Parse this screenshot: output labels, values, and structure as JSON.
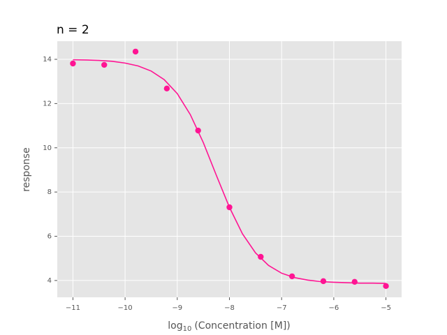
{
  "chart_data": {
    "type": "scatter",
    "title": "n = 2",
    "x_label": {
      "text": "log",
      "subscript": "10",
      "rest": "(Concentration [M])"
    },
    "y_label": "response",
    "xlim": [
      -11.3,
      -4.7
    ],
    "ylim": [
      3.24,
      14.82
    ],
    "xticks": [
      {
        "value": -11,
        "label": "−11"
      },
      {
        "value": -10,
        "label": "−10"
      },
      {
        "value": -9,
        "label": "−9"
      },
      {
        "value": -8,
        "label": "−8"
      },
      {
        "value": -7,
        "label": "−7"
      },
      {
        "value": -6,
        "label": "−6"
      },
      {
        "value": -5,
        "label": "−5"
      }
    ],
    "yticks": [
      4,
      6,
      8,
      10,
      12,
      14
    ],
    "grid": true,
    "series": [
      {
        "mode": "markers",
        "color": "#ff1493",
        "x": [
          -11,
          -10.4,
          -9.8,
          -9.2,
          -8.6,
          -8.0,
          -7.4,
          -6.8,
          -6.2,
          -5.6,
          -5.0
        ],
        "values": [
          13.81,
          13.75,
          14.35,
          12.68,
          10.78,
          7.31,
          5.07,
          4.19,
          3.97,
          3.94,
          3.75
        ]
      },
      {
        "mode": "line",
        "color": "#ff1493",
        "x": [
          -11,
          -10.75,
          -10.5,
          -10.25,
          -10,
          -9.75,
          -9.5,
          -9.25,
          -9,
          -8.75,
          -8.5,
          -8.25,
          -8,
          -7.75,
          -7.5,
          -7.25,
          -7,
          -6.75,
          -6.5,
          -6.25,
          -6,
          -5.75,
          -5.5,
          -5.25,
          -5
        ],
        "values": [
          13.98,
          13.97,
          13.95,
          13.91,
          13.83,
          13.7,
          13.47,
          13.08,
          12.45,
          11.5,
          10.23,
          8.75,
          7.31,
          6.11,
          5.25,
          4.68,
          4.33,
          4.13,
          4.02,
          3.95,
          3.92,
          3.9,
          3.88,
          3.88,
          3.87
        ]
      }
    ]
  }
}
